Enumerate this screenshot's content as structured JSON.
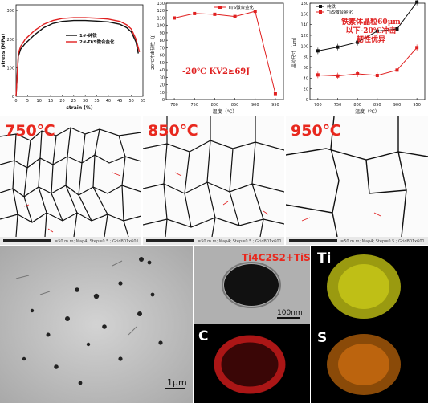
{
  "stress_strain": {
    "xlabel": "strain (%)",
    "ylabel": "stress (MPa)",
    "xticks": [
      "0",
      "5",
      "10",
      "15",
      "20",
      "25",
      "30",
      "35",
      "40",
      "45",
      "50",
      "55"
    ],
    "yticks": [
      "0",
      "100",
      "200",
      "300"
    ],
    "legend": [
      "1#-纯铁",
      "2#-Ti/S微合金化"
    ],
    "series_colors": [
      "#111111",
      "#e02020"
    ],
    "chart_data": {
      "type": "line",
      "xlim": [
        0,
        55
      ],
      "ylim": [
        0,
        320
      ],
      "series": [
        {
          "name": "1#-纯铁",
          "x": [
            0,
            1,
            2,
            4,
            8,
            12,
            16,
            20,
            25,
            30,
            35,
            40,
            45,
            48,
            50,
            52,
            53
          ],
          "y": [
            0,
            140,
            165,
            185,
            215,
            240,
            255,
            262,
            265,
            265,
            263,
            260,
            252,
            240,
            225,
            190,
            150
          ]
        },
        {
          "name": "2#-Ti/S微合金化",
          "x": [
            0,
            1,
            2,
            4,
            8,
            12,
            16,
            20,
            25,
            30,
            35,
            40,
            45,
            48,
            50,
            52,
            53.5
          ],
          "y": [
            0,
            150,
            175,
            200,
            230,
            252,
            265,
            272,
            275,
            275,
            273,
            270,
            262,
            250,
            235,
            200,
            155
          ]
        }
      ]
    }
  },
  "impact": {
    "ylabel": "-20℃冲击韧性（J）",
    "legend": "Ti/S微合金化",
    "annotation": "-20℃ KV2≥69J",
    "xticks": [
      "700",
      "750",
      "800",
      "850",
      "900",
      "950"
    ],
    "yticks": [
      "0",
      "10",
      "20",
      "30",
      "40",
      "50",
      "60",
      "70",
      "80",
      "90",
      "100",
      "110",
      "120",
      "130"
    ],
    "chart_data": {
      "type": "line",
      "x": [
        700,
        750,
        800,
        850,
        900,
        950
      ],
      "ylim": [
        0,
        130
      ],
      "series": [
        {
          "name": "Ti/S微合金化",
          "values": [
            110,
            116,
            115,
            112,
            119,
            8
          ]
        }
      ]
    }
  },
  "grain": {
    "ylabel": "晶粒尺寸（μm）",
    "xlabel": "温度（℃）",
    "legend": [
      "纯铁",
      "Ti/S微合金化"
    ],
    "annotation": [
      "铁素体晶粒60μm",
      "以下-20℃冲击",
      "韧性优异"
    ],
    "xticks": [
      "700",
      "750",
      "800",
      "850",
      "900",
      "950"
    ],
    "yticks": [
      "0",
      "20",
      "40",
      "60",
      "80",
      "100",
      "120",
      "140",
      "160",
      "180"
    ],
    "chart_data": {
      "type": "line",
      "x": [
        700,
        750,
        800,
        850,
        900,
        950
      ],
      "ylim": [
        0,
        180
      ],
      "series": [
        {
          "name": "纯铁",
          "values": [
            91,
            98,
            107,
            128,
            132,
            182
          ]
        },
        {
          "name": "Ti/S微合金化",
          "values": [
            46,
            44,
            48,
            45,
            55,
            97
          ]
        }
      ]
    }
  },
  "temp_label_mid": "温度（℃）",
  "micro_labels": [
    "750℃",
    "850℃",
    "950℃"
  ],
  "tem_labels": {
    "scale_main": "1μm",
    "particle": "Ti4C2S2+TiS",
    "scale_inset": "100nm",
    "ti": "Ti",
    "c": "C",
    "s": "S"
  }
}
